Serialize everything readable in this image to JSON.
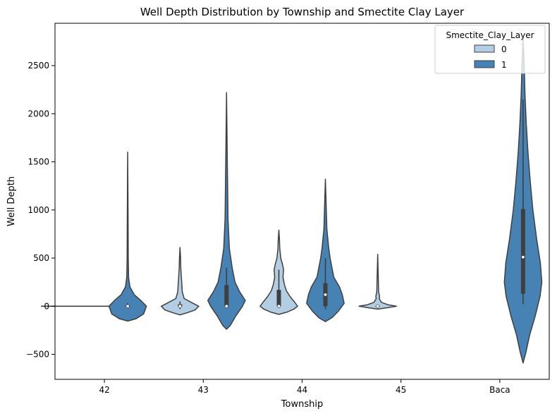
{
  "chart_data": {
    "type": "violin",
    "title": "Well Depth Distribution by Township and Smectite Clay Layer",
    "xlabel": "Township",
    "ylabel": "Well Depth",
    "categories": [
      "42",
      "43",
      "44",
      "45",
      "Baca"
    ],
    "ylim": [
      -760,
      2940
    ],
    "yticks": [
      -500,
      0,
      500,
      1000,
      1500,
      2000,
      2500
    ],
    "ytick_labels": [
      "−500",
      "0",
      "500",
      "1000",
      "1500",
      "2000",
      "2500"
    ],
    "grid": false,
    "legend": {
      "title": "Smectite_Clay_Layer",
      "position": "top-right",
      "entries": [
        {
          "label": "0",
          "color": "#b3cde3"
        },
        {
          "label": "1",
          "color": "#4682b4"
        }
      ]
    },
    "series": [
      {
        "name": "0",
        "color": "#b3cde3",
        "violins": [
          {
            "category": "42",
            "degenerate": true,
            "value": 0
          },
          {
            "category": "43",
            "median": 0,
            "q1": -5,
            "q3": 20,
            "whisker_low": -30,
            "whisker_high": 50,
            "profile": [
              [
                -90,
                0
              ],
              [
                -70,
                0.35
              ],
              [
                -40,
                0.8
              ],
              [
                0,
                1
              ],
              [
                30,
                0.7
              ],
              [
                80,
                0.22
              ],
              [
                150,
                0.12
              ],
              [
                250,
                0.09
              ],
              [
                300,
                0.07
              ],
              [
                400,
                0.04
              ],
              [
                500,
                0.03
              ],
              [
                610,
                0
              ]
            ]
          },
          {
            "category": "44",
            "median": 0,
            "q1": 0,
            "q3": 170,
            "whisker_low": -20,
            "whisker_high": 380,
            "profile": [
              [
                -85,
                0
              ],
              [
                -60,
                0.45
              ],
              [
                -30,
                0.8
              ],
              [
                0,
                1
              ],
              [
                40,
                0.85
              ],
              [
                100,
                0.6
              ],
              [
                160,
                0.4
              ],
              [
                220,
                0.3
              ],
              [
                300,
                0.22
              ],
              [
                380,
                0.25
              ],
              [
                430,
                0.2
              ],
              [
                500,
                0.1
              ],
              [
                600,
                0.05
              ],
              [
                700,
                0.03
              ],
              [
                790,
                0
              ]
            ]
          },
          {
            "category": "45",
            "median": 0,
            "q1": -5,
            "q3": 5,
            "whisker_low": -10,
            "whisker_high": 10,
            "profile": [
              [
                -30,
                0
              ],
              [
                -15,
                0.55
              ],
              [
                0,
                1
              ],
              [
                15,
                0.55
              ],
              [
                40,
                0.2
              ],
              [
                80,
                0.08
              ],
              [
                100,
                0.1
              ],
              [
                150,
                0.05
              ],
              [
                300,
                0.03
              ],
              [
                540,
                0
              ]
            ]
          }
        ]
      },
      {
        "name": "1",
        "color": "#4682b4",
        "violins": [
          {
            "category": "42",
            "median": 0,
            "q1": -5,
            "q3": 10,
            "whisker_low": -20,
            "whisker_high": 30,
            "profile": [
              [
                -155,
                0
              ],
              [
                -130,
                0.45
              ],
              [
                -80,
                0.85
              ],
              [
                0,
                1
              ],
              [
                60,
                0.7
              ],
              [
                120,
                0.35
              ],
              [
                200,
                0.12
              ],
              [
                300,
                0.05
              ],
              [
                500,
                0.03
              ],
              [
                1000,
                0.02
              ],
              [
                1600,
                0
              ]
            ]
          },
          {
            "category": "43",
            "median": 0,
            "q1": 0,
            "q3": 220,
            "whisker_low": -20,
            "whisker_high": 400,
            "profile": [
              [
                -240,
                0
              ],
              [
                -200,
                0.2
              ],
              [
                -100,
                0.5
              ],
              [
                0,
                0.85
              ],
              [
                60,
                1
              ],
              [
                150,
                0.7
              ],
              [
                250,
                0.45
              ],
              [
                400,
                0.3
              ],
              [
                600,
                0.15
              ],
              [
                900,
                0.08
              ],
              [
                1500,
                0.04
              ],
              [
                2220,
                0
              ]
            ]
          },
          {
            "category": "44",
            "median": 120,
            "q1": 0,
            "q3": 240,
            "whisker_low": -30,
            "whisker_high": 500,
            "profile": [
              [
                -160,
                0
              ],
              [
                -120,
                0.35
              ],
              [
                -50,
                0.7
              ],
              [
                30,
                1
              ],
              [
                120,
                0.9
              ],
              [
                200,
                0.75
              ],
              [
                300,
                0.45
              ],
              [
                400,
                0.35
              ],
              [
                500,
                0.25
              ],
              [
                600,
                0.18
              ],
              [
                800,
                0.08
              ],
              [
                1000,
                0.05
              ],
              [
                1320,
                0
              ]
            ]
          },
          {
            "category": "Baca",
            "median": 510,
            "q1": 130,
            "q3": 1010,
            "whisker_low": 20,
            "whisker_high": 2150,
            "profile": [
              [
                -590,
                0
              ],
              [
                -480,
                0.15
              ],
              [
                -300,
                0.35
              ],
              [
                -100,
                0.65
              ],
              [
                100,
                0.9
              ],
              [
                250,
                1
              ],
              [
                450,
                0.92
              ],
              [
                700,
                0.72
              ],
              [
                1000,
                0.52
              ],
              [
                1300,
                0.38
              ],
              [
                1600,
                0.26
              ],
              [
                1900,
                0.17
              ],
              [
                2200,
                0.1
              ],
              [
                2500,
                0.06
              ],
              [
                2780,
                0
              ]
            ]
          }
        ]
      }
    ]
  }
}
